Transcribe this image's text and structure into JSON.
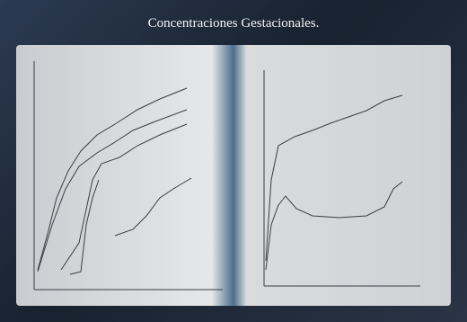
{
  "header": {
    "title": "Concentraciones Gestacionales."
  }
}
